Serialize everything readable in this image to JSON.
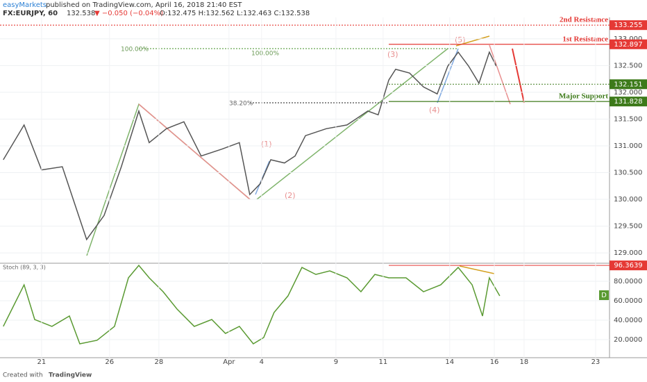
{
  "header": {
    "publisher": "easyMarkets",
    "published": "published on TradingView.com, April 16, 2018 21:40 EST",
    "symbol": "FX:EURJPY, 60",
    "last": "132.538",
    "change": "▼ −0.050 (−0.04%)",
    "ohlc": "O:132.475 H:132.562 L:132.463 C:132.538"
  },
  "footer": {
    "created": "Created with",
    "brand": "TradingView"
  },
  "chart_data": [
    {
      "type": "line",
      "color": "#555555",
      "x": [
        -1.62,
        -0.74,
        0,
        0.88,
        1.47,
        1.91,
        2.65,
        3.38,
        4.12,
        4.56,
        5.29,
        6.03,
        6.76,
        7.65,
        8.38,
        8.82,
        9.26,
        9.71,
        10.29,
        10.74,
        11.18,
        12.06,
        12.94,
        13.82,
        14.26,
        14.71,
        15,
        15.59,
        16.18,
        16.76,
        17.21,
        17.65,
        18.09,
        18.53,
        18.97,
        19.26
      ],
      "values": [
        130.74,
        131.39,
        130.55,
        130.61,
        129.83,
        129.25,
        129.7,
        130.61,
        131.65,
        131.06,
        131.32,
        131.45,
        130.81,
        130.94,
        131.06,
        130.09,
        130.29,
        130.74,
        130.68,
        130.81,
        131.19,
        131.32,
        131.39,
        131.65,
        131.58,
        132.23,
        132.43,
        132.36,
        132.1,
        131.97,
        132.49,
        132.75,
        132.49,
        132.17,
        132.75,
        132.49
      ],
      "xlim": [
        -1.76,
        24.06
      ],
      "ylim": [
        128.82,
        133.4
      ],
      "xticks": [
        {
          "value": 0,
          "label": "21"
        },
        {
          "value": 2.88,
          "label": "26"
        },
        {
          "value": 4.97,
          "label": "28"
        },
        {
          "value": 7.94,
          "label": "Apr"
        },
        {
          "value": 9.32,
          "label": "4"
        },
        {
          "value": 12.47,
          "label": "9"
        },
        {
          "value": 14.47,
          "label": "11"
        },
        {
          "value": 17.29,
          "label": "14"
        },
        {
          "value": 19.18,
          "label": "16"
        },
        {
          "value": 20.44,
          "label": "18"
        },
        {
          "value": 23.47,
          "label": "23"
        }
      ],
      "yticks": [
        {
          "value": 129,
          "label": "129.000"
        },
        {
          "value": 129.5,
          "label": "129.500"
        },
        {
          "value": 130,
          "label": "130.000"
        },
        {
          "value": 130.5,
          "label": "130.500"
        },
        {
          "value": 131,
          "label": "131.000"
        },
        {
          "value": 131.5,
          "label": "131.500"
        },
        {
          "value": 132,
          "label": "132.000"
        },
        {
          "value": 132.5,
          "label": "132.500"
        },
        {
          "value": 133,
          "label": "133.000"
        }
      ],
      "levels": [
        {
          "name": "2nd Resistance",
          "value": 133.255,
          "color": "#e53935"
        },
        {
          "name": "1st Resistance",
          "value": 132.897,
          "color": "#e53935"
        },
        {
          "value": 132.151,
          "color": "#3d7a1a"
        },
        {
          "name": "Major Support",
          "value": 131.828,
          "color": "#3d7a1a"
        }
      ],
      "annotations": [
        "100.00%",
        "100.00%",
        "38.20%",
        "(1)",
        "(2)",
        "(3)",
        "(4)",
        "(5)"
      ]
    },
    {
      "type": "line",
      "title": "Stoch (89, 3, 3)",
      "color": "#5a9a32",
      "legend": "D",
      "x": [
        -1.62,
        -1.18,
        -0.74,
        -0.29,
        0.44,
        1.18,
        1.62,
        2.35,
        3.09,
        3.68,
        4.12,
        4.56,
        5.15,
        5.74,
        6.47,
        7.21,
        7.79,
        8.38,
        8.97,
        9.41,
        9.85,
        10.44,
        11.03,
        11.62,
        12.21,
        12.94,
        13.53,
        14.12,
        14.71,
        15.44,
        16.18,
        16.91,
        17.65,
        18.24,
        18.68,
        18.97,
        19.41
      ],
      "values": [
        33.6,
        55,
        76.4,
        40.7,
        33.6,
        44.3,
        15.7,
        19.3,
        33.6,
        83.6,
        96.4,
        83.6,
        69.3,
        51.4,
        33.6,
        40.7,
        26.4,
        33.6,
        15.7,
        22.1,
        47.9,
        65,
        94.3,
        87.1,
        90.7,
        83.6,
        69.3,
        87.1,
        83.6,
        83.6,
        69.3,
        76.4,
        94.3,
        76.4,
        44.3,
        83.6,
        65
      ],
      "ylim": [
        1.4,
        97.9
      ],
      "yticks": [
        {
          "value": 20,
          "label": "20.0000"
        },
        {
          "value": 40,
          "label": "40.0000"
        },
        {
          "value": 60,
          "label": "60.0000"
        },
        {
          "value": 80,
          "label": "80.0000"
        }
      ],
      "levels": [
        {
          "value": 96.3639,
          "color": "#e53935"
        }
      ]
    }
  ]
}
